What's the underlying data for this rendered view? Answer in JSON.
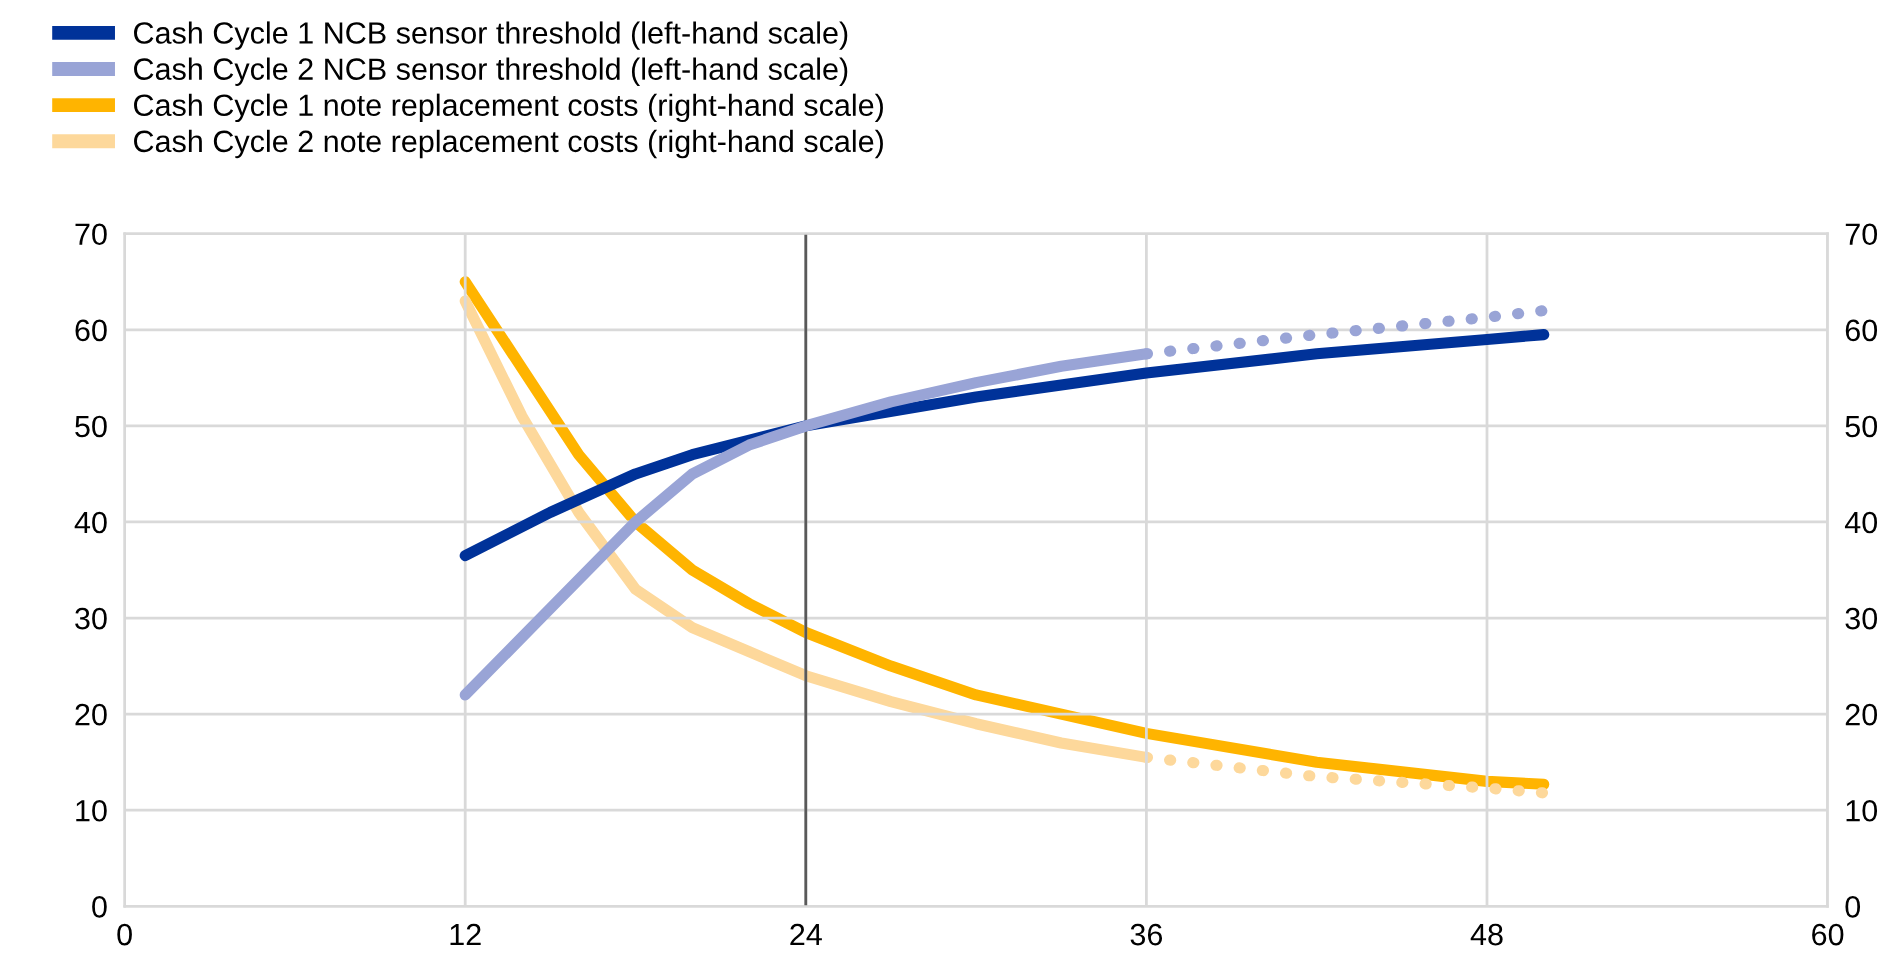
{
  "chart_data": {
    "type": "line",
    "xlim": [
      0,
      60
    ],
    "xticks": [
      0,
      12,
      24,
      36,
      48,
      60
    ],
    "ylim": [
      0,
      70
    ],
    "yticks": [
      0,
      10,
      20,
      30,
      40,
      50,
      60,
      70
    ],
    "y2lim": [
      0,
      70
    ],
    "y2ticks": [
      0,
      10,
      20,
      30,
      40,
      50,
      60,
      70
    ],
    "grid": true,
    "legend": "top left",
    "marker": "none",
    "ref_lines": [
      {
        "axis": "x",
        "value": 24,
        "color": "#595959",
        "line_style": "solid"
      }
    ],
    "series": [
      {
        "name": "Cash Cycle 1 NCB sensor threshold (left-hand scale)",
        "color": "#003299",
        "line_style": "solid",
        "x": [
          12,
          15,
          18,
          20,
          24,
          30,
          36,
          42,
          48,
          50
        ],
        "values": [
          36.5,
          41,
          45,
          47,
          50,
          53,
          55.5,
          57.5,
          59,
          59.5
        ]
      },
      {
        "name": "Cash Cycle 2 NCB sensor threshold (left-hand scale)",
        "color": "#99a4d6",
        "line_style": "solid",
        "x": [
          12,
          15,
          18,
          20,
          22,
          24,
          27,
          30,
          33,
          36
        ],
        "values": [
          22,
          31,
          40,
          45,
          48,
          50,
          52.5,
          54.5,
          56.2,
          57.5
        ]
      },
      {
        "name": "Cash Cycle 1 note replacement costs (right-hand scale)",
        "color": "#ffb400",
        "axis": "y2",
        "line_style": "solid",
        "x": [
          12,
          14,
          16,
          18,
          20,
          22,
          24,
          27,
          30,
          33,
          36,
          42,
          48,
          50
        ],
        "values": [
          65,
          56,
          47,
          40,
          35,
          31.5,
          28.5,
          25,
          22,
          20,
          18,
          15,
          13,
          12.7
        ]
      },
      {
        "name": "Cash Cycle 2 note replacement costs (right-hand scale)",
        "color": "#fdd89b",
        "axis": "y2",
        "line_style": "solid",
        "x": [
          12,
          14,
          16,
          18,
          20,
          22,
          24,
          27,
          30,
          33,
          36
        ],
        "values": [
          63,
          51,
          41,
          33,
          29,
          26.5,
          24,
          21.3,
          19,
          17,
          15.5
        ]
      },
      {
        "color": "#99a4d6",
        "line_style": "dotted",
        "x": [
          36,
          42,
          48,
          50
        ],
        "values": [
          57.5,
          59.5,
          61.3,
          62
        ]
      },
      {
        "color": "#fdd89b",
        "line_style": "dotted",
        "axis": "y2",
        "x": [
          36,
          42,
          48,
          50
        ],
        "values": [
          15.5,
          13.5,
          12.3,
          11.8
        ]
      }
    ]
  }
}
